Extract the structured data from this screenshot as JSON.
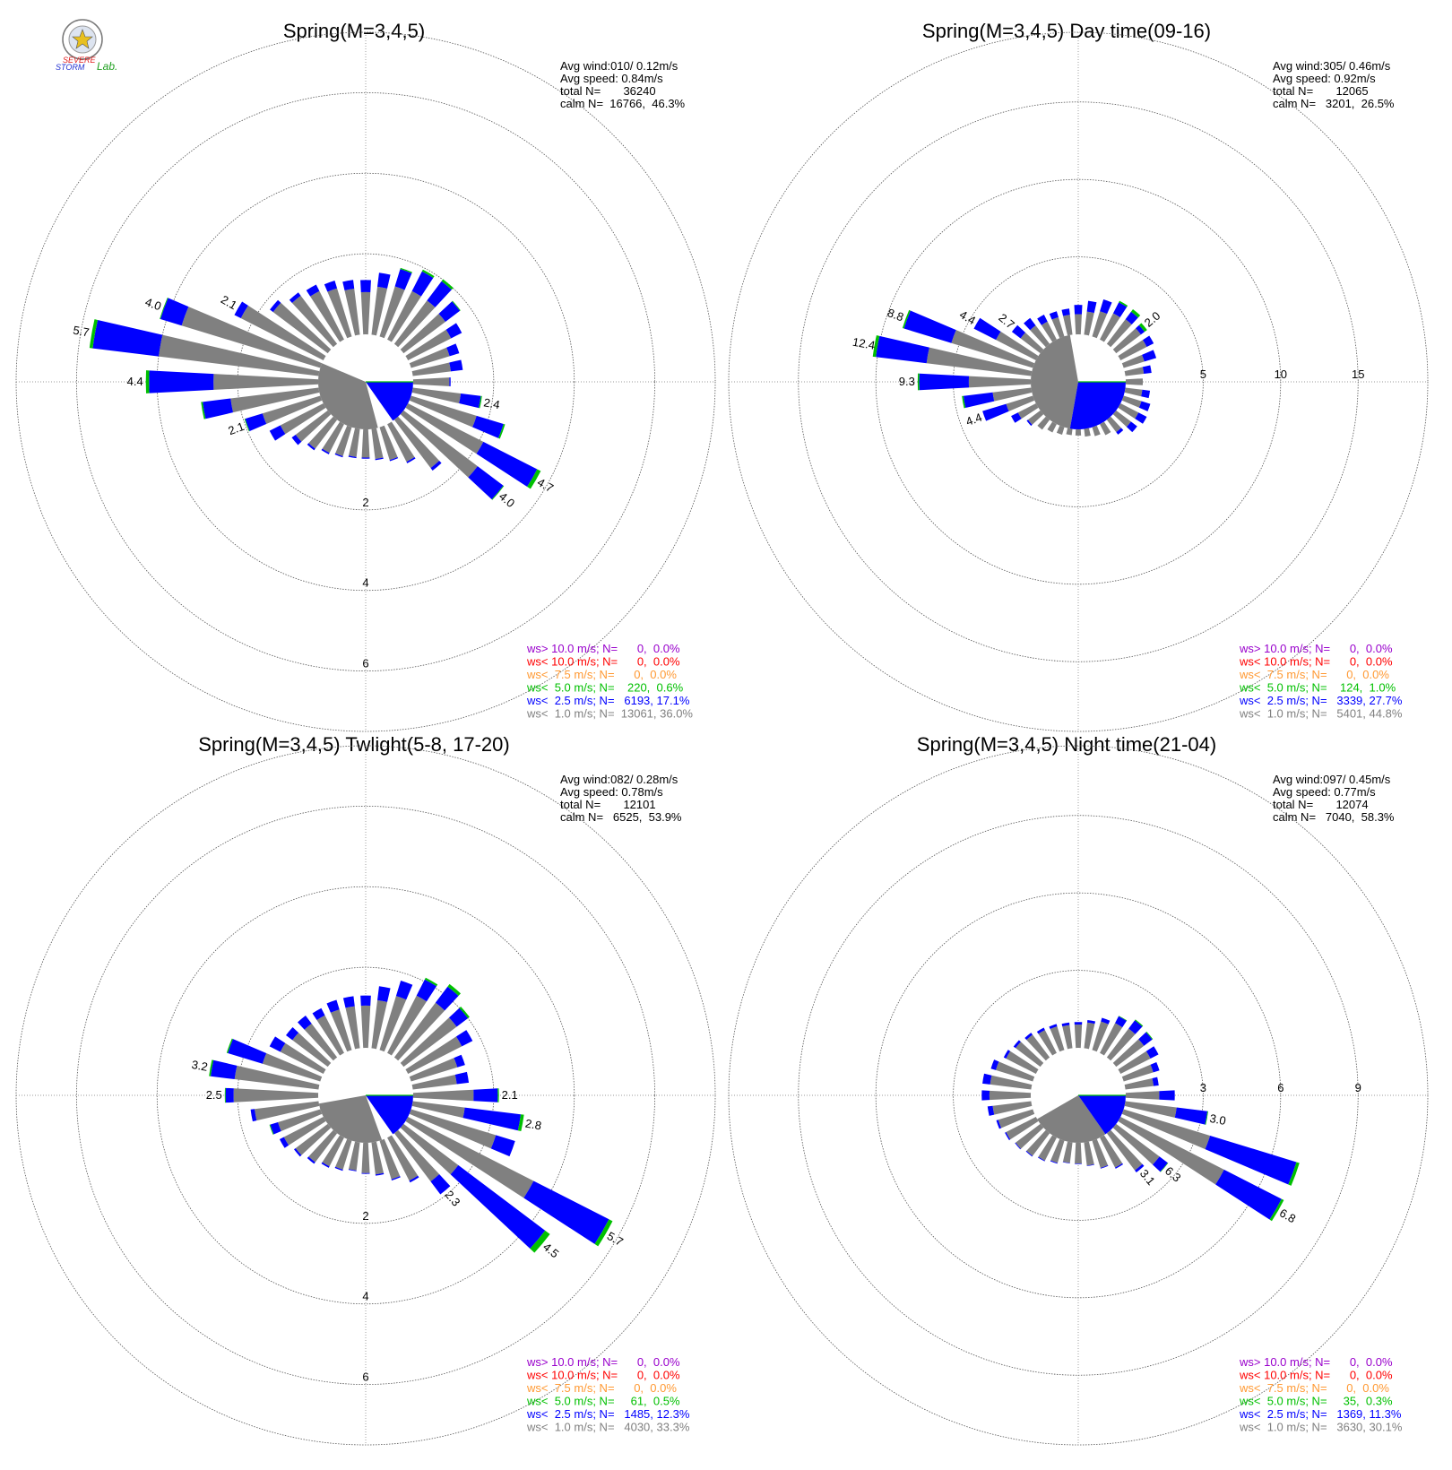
{
  "logo": {
    "line1": "SEVERE",
    "line2": "STORM",
    "line3": "Lab.",
    "color_red": "#e02020",
    "color_blue": "#2030d0",
    "color_green": "#20a020"
  },
  "colors": {
    "ws_lt_1": "#808080",
    "ws_lt_2_5": "#0000ff",
    "ws_lt_5": "#00c000",
    "ws_lt_7_5": "#ff9933",
    "ws_lt_10": "#ff0000",
    "ws_gt_10": "#9900cc",
    "calm_sector": "#808080",
    "avg_sector": "#0000ff"
  },
  "chart_data": [
    {
      "type": "polar-bar",
      "title": "Spring(M=3,4,5)",
      "rmax": 7.5,
      "ring_values": [
        2,
        4,
        6
      ],
      "ring_labels": [
        "2",
        "4",
        "6"
      ],
      "ring_label_side": "bottom",
      "stats": {
        "avg_wind": "Avg wind:010/ 0.12m/s",
        "avg_speed": "Avg speed: 0.84m/s",
        "total": "total N=       36240",
        "calm": "calm N=  16766,  46.3%"
      },
      "legend": [
        "ws> 10.0 m/s; N=      0,  0.0%",
        "ws< 10.0 m/s; N=      0,  0.0%",
        "ws<  7.5 m/s; N=      0,  0.0%",
        "ws<  5.0 m/s; N=    220,  0.6%",
        "ws<  2.5 m/s; N=   6193, 17.1%",
        "ws<  1.0 m/s; N=  13061, 36.0%"
      ],
      "calm_sector": {
        "start_deg": 165,
        "end_deg": 293
      },
      "avg_sector": {
        "start_deg": 90,
        "end_deg": 145
      },
      "directions": [
        0,
        10,
        20,
        30,
        40,
        50,
        60,
        70,
        80,
        90,
        100,
        110,
        120,
        130,
        140,
        150,
        160,
        170,
        180,
        190,
        200,
        210,
        220,
        230,
        240,
        250,
        260,
        270,
        280,
        290,
        300,
        310,
        320,
        330,
        340,
        350
      ],
      "gray": [
        1.05,
        1.2,
        1.3,
        1.35,
        1.35,
        1.3,
        1.2,
        1.0,
        0.95,
        0.9,
        1.2,
        1.7,
        2.1,
        2.3,
        1.5,
        1.05,
        0.85,
        0.75,
        0.7,
        0.7,
        0.75,
        0.8,
        0.9,
        1.0,
        1.2,
        1.5,
        2.2,
        2.6,
        4.0,
        3.6,
        2.3,
        1.7,
        1.5,
        1.35,
        1.25,
        1.15
      ],
      "blue": [
        0.3,
        0.35,
        0.45,
        0.55,
        0.6,
        0.45,
        0.3,
        0.25,
        0.3,
        0.03,
        0.5,
        0.7,
        1.5,
        0.8,
        0.08,
        0.04,
        0.03,
        0.03,
        0.03,
        0.03,
        0.03,
        0.04,
        0.05,
        0.12,
        0.3,
        0.45,
        0.7,
        1.6,
        1.65,
        0.55,
        0.18,
        0.1,
        0.1,
        0.18,
        0.2,
        0.22
      ],
      "green": [
        0.0,
        0.0,
        0.03,
        0.05,
        0.06,
        0.02,
        0.0,
        0.0,
        0.0,
        0.0,
        0.03,
        0.04,
        0.1,
        0.02,
        0.0,
        0.0,
        0.0,
        0.0,
        0.0,
        0.0,
        0.0,
        0.0,
        0.0,
        0.0,
        0.0,
        0.02,
        0.04,
        0.08,
        0.08,
        0.02,
        0.0,
        0.0,
        0.0,
        0.0,
        0.0,
        0.0
      ],
      "bar_labels": [
        {
          "dir": 100,
          "text": "2.4"
        },
        {
          "dir": 120,
          "text": "4.7"
        },
        {
          "dir": 130,
          "text": "4.0"
        },
        {
          "dir": 250,
          "text": "2.1"
        },
        {
          "dir": 270,
          "text": "4.4"
        },
        {
          "dir": 280,
          "text": "5.7"
        },
        {
          "dir": 290,
          "text": "4.0"
        },
        {
          "dir": 300,
          "text": "2.1"
        }
      ]
    },
    {
      "type": "polar-bar",
      "title": "Spring(M=3,4,5) Day time(09-16)",
      "rmax": 19.5,
      "ring_values": [
        5,
        10,
        15
      ],
      "ring_labels": [
        "5",
        "10",
        "15"
      ],
      "ring_label_side": "right",
      "stats": {
        "avg_wind": "Avg wind:305/ 0.46m/s",
        "avg_speed": "Avg speed: 0.92m/s",
        "total": "total N=       12065",
        "calm": "calm N=   3201,  26.5%"
      },
      "legend": [
        "ws> 10.0 m/s; N=      0,  0.0%",
        "ws< 10.0 m/s; N=      0,  0.0%",
        "ws<  7.5 m/s; N=      0,  0.0%",
        "ws<  5.0 m/s; N=    124,  1.0%",
        "ws<  2.5 m/s; N=   3339, 27.7%",
        "ws<  1.0 m/s; N=   5401, 44.8%"
      ],
      "calm_sector": {
        "start_deg": 190,
        "end_deg": 350
      },
      "avg_sector": {
        "start_deg": 90,
        "end_deg": 190
      },
      "directions": [
        0,
        10,
        20,
        30,
        40,
        50,
        60,
        70,
        80,
        90,
        100,
        110,
        120,
        130,
        140,
        150,
        160,
        170,
        180,
        190,
        200,
        210,
        220,
        230,
        240,
        250,
        260,
        270,
        280,
        290,
        300,
        310,
        320,
        330,
        340,
        350
      ],
      "gray": [
        1.3,
        1.5,
        1.7,
        1.9,
        2.0,
        2.0,
        1.9,
        1.4,
        1.2,
        1.1,
        1.1,
        1.2,
        1.3,
        1.2,
        1.0,
        0.8,
        0.6,
        0.5,
        0.4,
        0.4,
        0.5,
        0.6,
        0.8,
        1.0,
        1.3,
        1.8,
        2.5,
        4.0,
        6.8,
        5.5,
        2.9,
        1.6,
        1.5,
        1.3,
        1.3,
        1.3
      ],
      "blue": [
        0.6,
        0.7,
        0.8,
        0.8,
        0.6,
        0.3,
        0.5,
        0.8,
        0.5,
        0.0,
        0.5,
        0.6,
        0.6,
        0.5,
        0.2,
        0.0,
        0.0,
        0.0,
        0.0,
        0.0,
        0.0,
        0.0,
        0.0,
        0.1,
        0.5,
        1.6,
        1.9,
        3.2,
        3.3,
        3.2,
        1.6,
        0.7,
        0.6,
        0.5,
        0.4,
        0.4
      ],
      "green": [
        0.0,
        0.0,
        0.0,
        0.1,
        0.2,
        0.2,
        0.0,
        0.0,
        0.0,
        0.0,
        0.0,
        0.0,
        0.0,
        0.0,
        0.0,
        0.0,
        0.0,
        0.0,
        0.0,
        0.0,
        0.0,
        0.0,
        0.0,
        0.0,
        0.0,
        0.0,
        0.1,
        0.1,
        0.2,
        0.1,
        0.0,
        0.0,
        0.0,
        0.0,
        0.0,
        0.0
      ],
      "bar_labels": [
        {
          "dir": 50,
          "text": "2.0"
        },
        {
          "dir": 250,
          "text": "4.4"
        },
        {
          "dir": 270,
          "text": "9.3"
        },
        {
          "dir": 280,
          "text": "12.4"
        },
        {
          "dir": 290,
          "text": "8.8"
        },
        {
          "dir": 300,
          "text": "4.4"
        },
        {
          "dir": 310,
          "text": "2.7"
        }
      ]
    },
    {
      "type": "polar-bar",
      "title": "Spring(M=3,4,5) Twlight(5-8, 17-20)",
      "rmax": 7.5,
      "ring_values": [
        2,
        4,
        6
      ],
      "ring_labels": [
        "2",
        "4",
        "6"
      ],
      "ring_label_side": "bottom",
      "stats": {
        "avg_wind": "Avg wind:082/ 0.28m/s",
        "avg_speed": "Avg speed: 0.78m/s",
        "total": "total N=       12101",
        "calm": "calm N=   6525,  53.9%"
      },
      "legend": [
        "ws> 10.0 m/s; N=      0,  0.0%",
        "ws< 10.0 m/s; N=      0,  0.0%",
        "ws<  7.5 m/s; N=      0,  0.0%",
        "ws<  5.0 m/s; N=     61,  0.5%",
        "ws<  2.5 m/s; N=   1485, 12.3%",
        "ws<  1.0 m/s; N=   4030, 33.3%"
      ],
      "calm_sector": {
        "start_deg": 160,
        "end_deg": 260
      },
      "avg_sector": {
        "start_deg": 90,
        "end_deg": 145
      },
      "directions": [
        0,
        10,
        20,
        30,
        40,
        50,
        60,
        70,
        80,
        90,
        100,
        110,
        120,
        130,
        140,
        150,
        160,
        170,
        180,
        190,
        200,
        210,
        220,
        230,
        240,
        250,
        260,
        270,
        280,
        290,
        300,
        310,
        320,
        330,
        340,
        350
      ],
      "gray": [
        1.05,
        1.2,
        1.4,
        1.6,
        1.7,
        1.65,
        1.5,
        1.2,
        1.1,
        1.5,
        1.3,
        2.2,
        3.5,
        1.7,
        1.5,
        1.2,
        1.0,
        0.8,
        0.75,
        0.7,
        0.75,
        0.8,
        0.9,
        1.0,
        1.1,
        1.1,
        1.6,
        2.1,
        2.1,
        1.5,
        1.2,
        1.1,
        1.05,
        1.05,
        1.05,
        1.05
      ],
      "blue": [
        0.25,
        0.35,
        0.4,
        0.45,
        0.5,
        0.35,
        0.3,
        0.2,
        0.3,
        0.6,
        1.4,
        0.5,
        2.1,
        2.7,
        0.4,
        0.05,
        0.03,
        0.03,
        0.02,
        0.02,
        0.03,
        0.04,
        0.05,
        0.05,
        0.12,
        0.2,
        0.1,
        0.2,
        0.6,
        0.9,
        0.3,
        0.2,
        0.25,
        0.2,
        0.25,
        0.25
      ],
      "green": [
        0.0,
        0.0,
        0.0,
        0.05,
        0.08,
        0.05,
        0.0,
        0.0,
        0.0,
        0.03,
        0.08,
        0.0,
        0.1,
        0.15,
        0.0,
        0.0,
        0.0,
        0.0,
        0.0,
        0.0,
        0.0,
        0.0,
        0.0,
        0.0,
        0.0,
        0.02,
        0.0,
        0.02,
        0.04,
        0.03,
        0.0,
        0.0,
        0.0,
        0.0,
        0.0,
        0.0
      ],
      "bar_labels": [
        {
          "dir": 90,
          "text": "2.1"
        },
        {
          "dir": 100,
          "text": "2.8"
        },
        {
          "dir": 120,
          "text": "5.7"
        },
        {
          "dir": 130,
          "text": "4.5"
        },
        {
          "dir": 140,
          "text": "2.3"
        },
        {
          "dir": 270,
          "text": "2.5"
        },
        {
          "dir": 280,
          "text": "3.2"
        }
      ]
    },
    {
      "type": "polar-bar",
      "title": "Spring(M=3,4,5) Night time(21-04)",
      "rmax": 11.7,
      "ring_values": [
        3,
        6,
        9
      ],
      "ring_labels": [
        "3",
        "6",
        "9"
      ],
      "ring_label_side": "right",
      "stats": {
        "avg_wind": "Avg wind:097/ 0.45m/s",
        "avg_speed": "Avg speed: 0.77m/s",
        "total": "total N=       12074",
        "calm": "calm N=   7040,  58.3%"
      },
      "legend": [
        "ws> 10.0 m/s; N=      0,  0.0%",
        "ws< 10.0 m/s; N=      0,  0.0%",
        "ws<  7.5 m/s; N=      0,  0.0%",
        "ws<  5.0 m/s; N=     35,  0.3%",
        "ws<  2.5 m/s; N=   1369, 11.3%",
        "ws<  1.0 m/s; N=   3630, 30.1%"
      ],
      "calm_sector": {
        "start_deg": 145,
        "end_deg": 240
      },
      "avg_sector": {
        "start_deg": 90,
        "end_deg": 145
      },
      "directions": [
        0,
        10,
        20,
        30,
        40,
        50,
        60,
        70,
        80,
        90,
        100,
        110,
        120,
        130,
        140,
        150,
        160,
        170,
        180,
        190,
        200,
        210,
        220,
        230,
        240,
        250,
        260,
        270,
        280,
        290,
        300,
        310,
        320,
        330,
        340,
        350
      ],
      "gray": [
        0.9,
        1.0,
        1.15,
        1.3,
        1.4,
        1.35,
        1.3,
        1.2,
        1.1,
        1.3,
        2.0,
        3.5,
        4.5,
        2.1,
        1.8,
        1.3,
        1.1,
        0.9,
        0.8,
        0.8,
        0.9,
        1.0,
        1.1,
        1.2,
        1.3,
        1.4,
        1.5,
        1.6,
        1.6,
        1.5,
        1.3,
        1.2,
        1.1,
        1.0,
        0.95,
        0.9
      ],
      "blue": [
        0.1,
        0.1,
        0.15,
        0.3,
        0.4,
        0.4,
        0.35,
        0.25,
        0.2,
        0.6,
        1.2,
        3.5,
        2.5,
        0.4,
        0.1,
        0.05,
        0.03,
        0.02,
        0.02,
        0.02,
        0.03,
        0.03,
        0.03,
        0.03,
        0.05,
        0.08,
        0.2,
        0.3,
        0.3,
        0.2,
        0.1,
        0.1,
        0.1,
        0.1,
        0.1,
        0.1
      ],
      "green": [
        0.0,
        0.0,
        0.0,
        0.02,
        0.04,
        0.03,
        0.0,
        0.0,
        0.0,
        0.0,
        0.03,
        0.12,
        0.1,
        0.02,
        0.0,
        0.0,
        0.0,
        0.0,
        0.0,
        0.0,
        0.0,
        0.0,
        0.0,
        0.0,
        0.0,
        0.0,
        0.0,
        0.0,
        0.0,
        0.0,
        0.0,
        0.0,
        0.0,
        0.0,
        0.0,
        0.0
      ],
      "bar_labels": [
        {
          "dir": 100,
          "text": "3.0"
        },
        {
          "dir": 120,
          "text": "6.8"
        },
        {
          "dir": 130,
          "text": "6.3"
        },
        {
          "dir": 140,
          "text": "3.1"
        }
      ]
    }
  ]
}
